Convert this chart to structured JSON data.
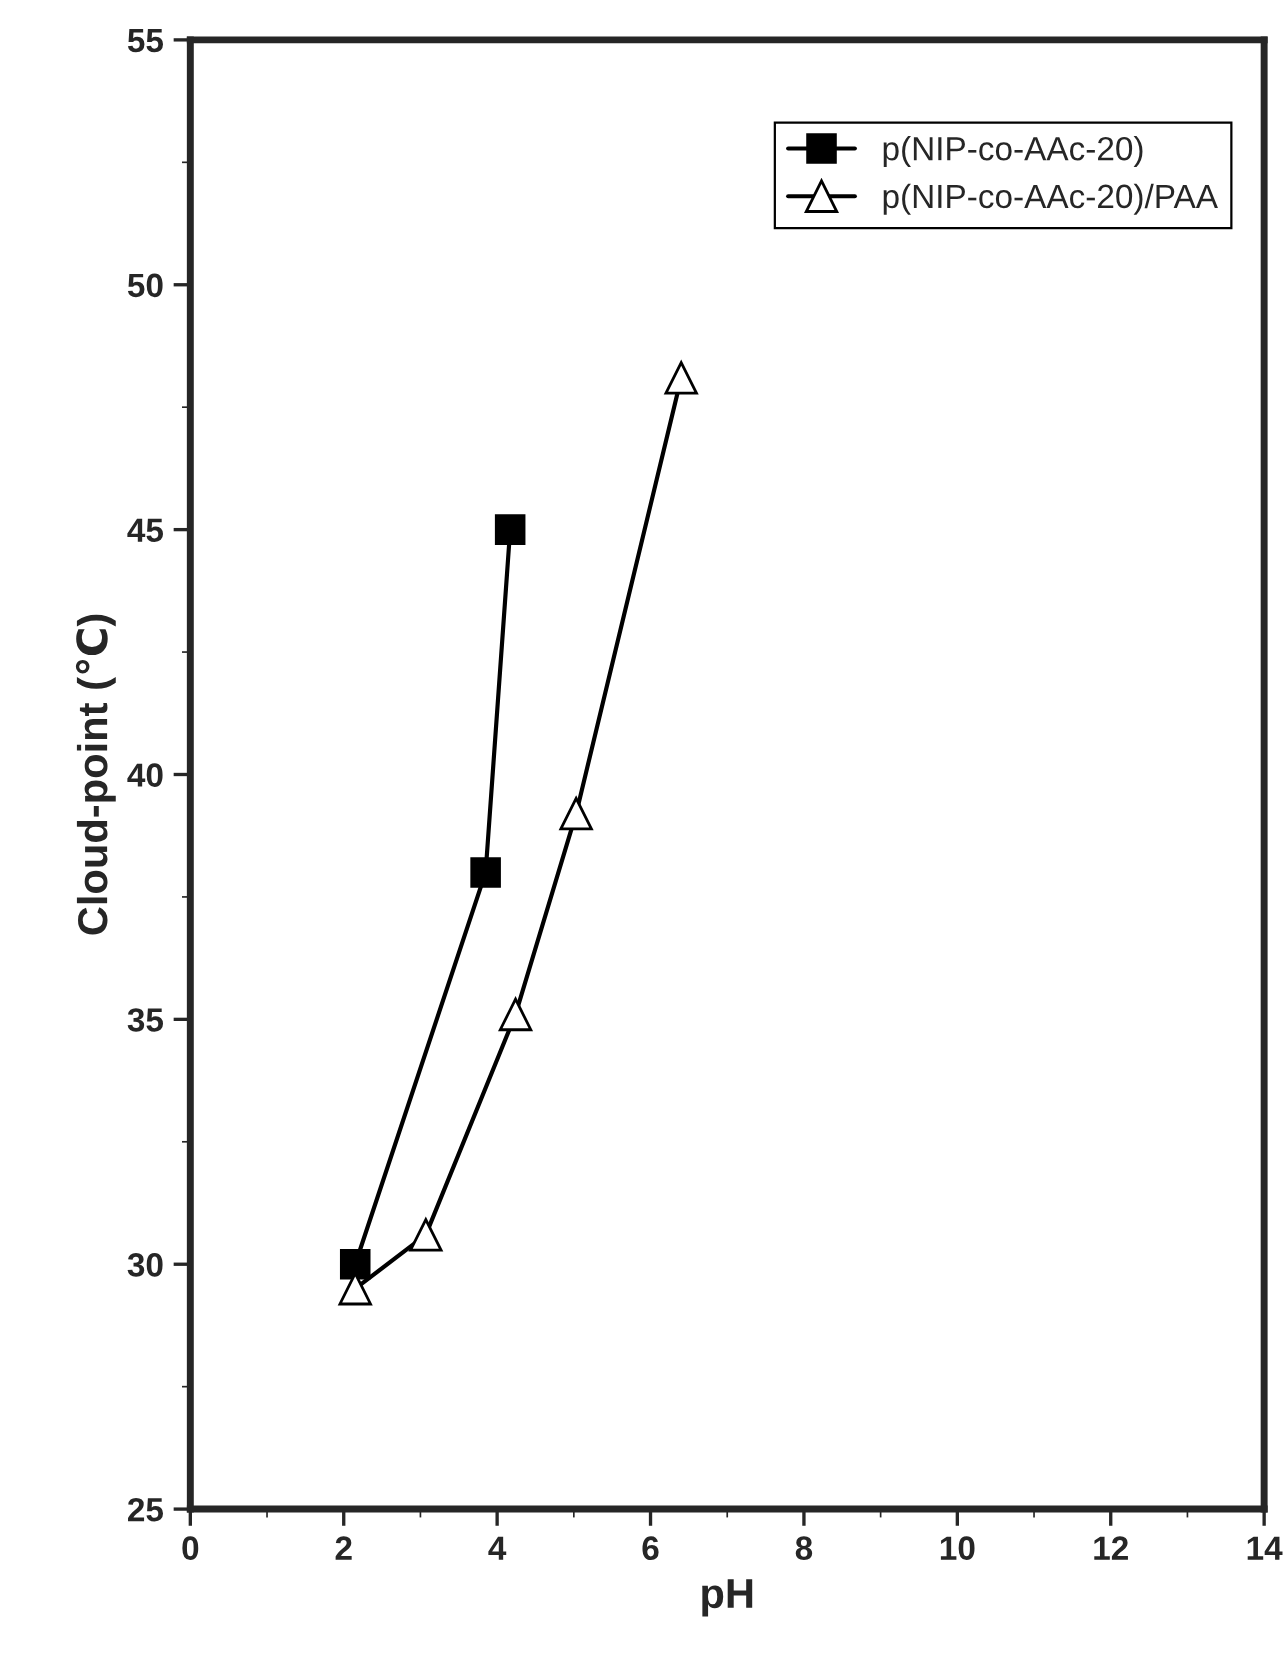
{
  "chart_data": {
    "type": "line",
    "xlabel": "pH",
    "ylabel": "Cloud-point (℃)",
    "xlim": [
      0,
      14
    ],
    "xticks": [
      0,
      2,
      4,
      6,
      8,
      10,
      12,
      14
    ],
    "ylim": [
      25,
      55
    ],
    "yticks": [
      25,
      30,
      35,
      40,
      45,
      50,
      55
    ],
    "grid": false,
    "legend": "top right",
    "line_style": "solid",
    "series": [
      {
        "name": "p(NIP-co-AAc-20)",
        "color": "#000000",
        "marker": "square",
        "x": [
          2.15,
          3.85,
          4.17
        ],
        "values": [
          30.0,
          38.0,
          45.0
        ]
      },
      {
        "name": "p(NIP-co-AAc-20)/PAA",
        "color": "#000000",
        "marker": "triangle",
        "x": [
          2.15,
          3.07,
          4.24,
          5.03,
          6.4
        ],
        "values": [
          29.5,
          30.6,
          35.1,
          39.2,
          48.1
        ]
      }
    ]
  }
}
